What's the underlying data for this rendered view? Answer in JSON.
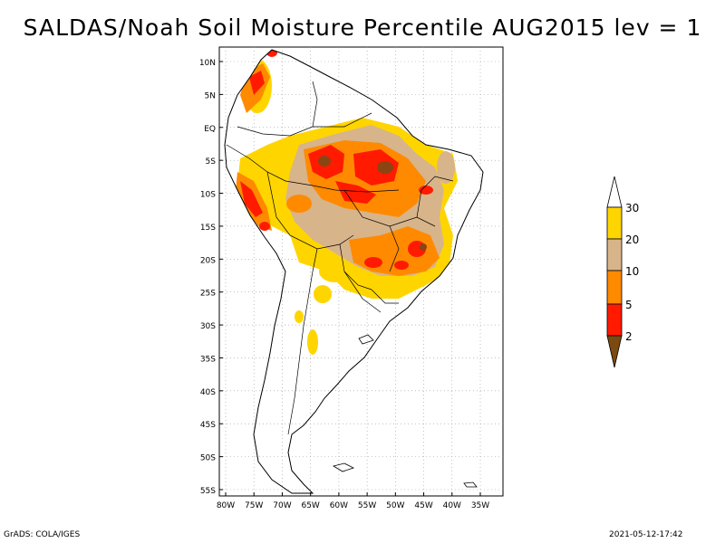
{
  "title": "SALDAS/Noah Soil Moisture Percentile AUG2015 lev = 1",
  "footer": {
    "left": "GrADS: COLA/IGES",
    "right": "2021-05-12-17:42"
  },
  "map": {
    "lon_range": [
      -81,
      -30
    ],
    "lat_range": [
      -56,
      12
    ],
    "lat_labels": [
      "10N",
      "5N",
      "EQ",
      "5S",
      "10S",
      "15S",
      "20S",
      "25S",
      "30S",
      "35S",
      "40S",
      "45S",
      "50S",
      "55S"
    ],
    "lon_labels": [
      "80W",
      "75W",
      "70W",
      "65W",
      "60W",
      "55W",
      "50W",
      "45W",
      "40W",
      "35W"
    ]
  },
  "legend": {
    "labels": [
      "30",
      "20",
      "10",
      "5",
      "2"
    ],
    "colors": [
      "#ffffff",
      "#ffd500",
      "#d8b48a",
      "#ff8a00",
      "#ff1a00",
      "#7a4a10"
    ]
  },
  "colors": {
    "brown": "#8b4513",
    "red": "#ff1a00",
    "orange": "#ff8a00",
    "tan": "#d8b48a",
    "yellow": "#ffd500"
  }
}
